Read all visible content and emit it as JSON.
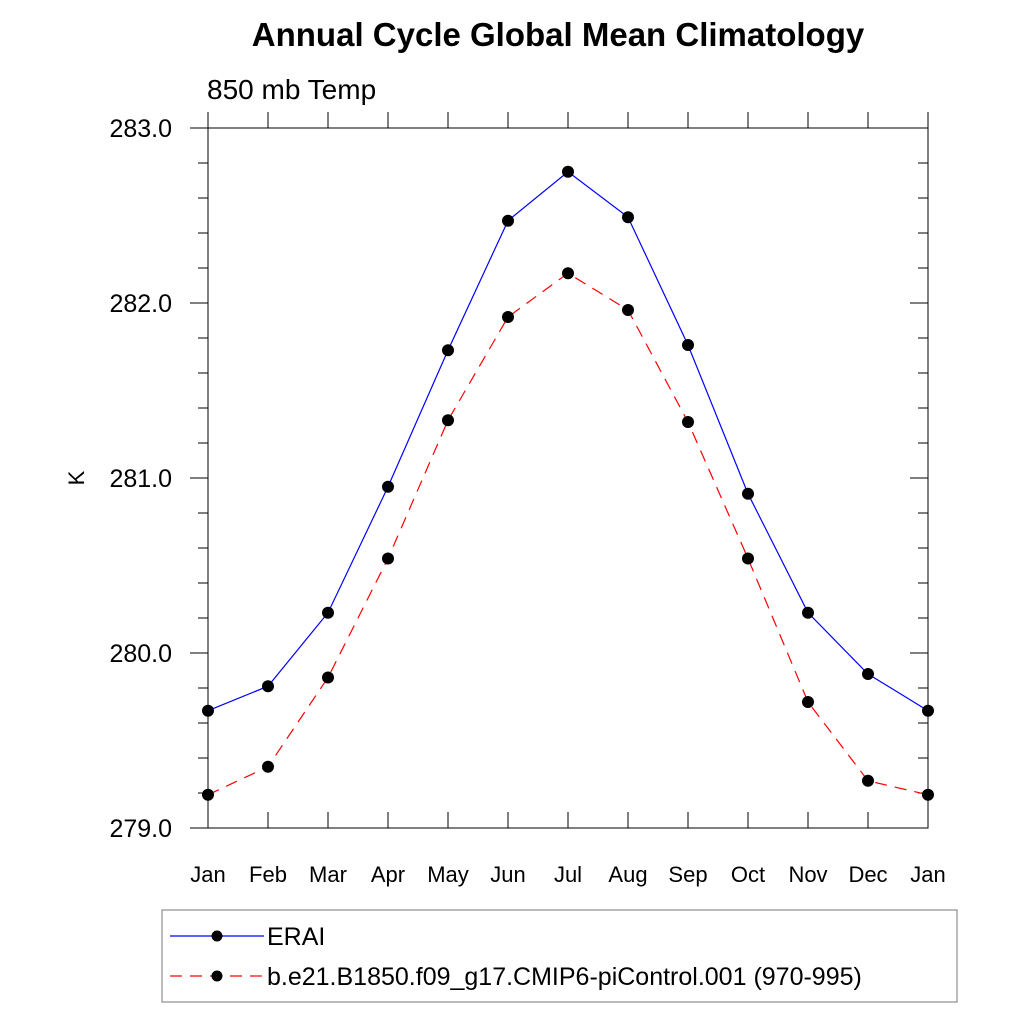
{
  "chart_data": {
    "type": "line",
    "title": "Annual Cycle Global Mean Climatology",
    "subtitle": "850 mb Temp",
    "xlabel": "",
    "ylabel": "K",
    "ylim": [
      279.0,
      283.0
    ],
    "yticks": [
      "279.0",
      "280.0",
      "281.0",
      "282.0",
      "283.0"
    ],
    "categories": [
      "Jan",
      "Feb",
      "Mar",
      "Apr",
      "May",
      "Jun",
      "Jul",
      "Aug",
      "Sep",
      "Oct",
      "Nov",
      "Dec",
      "Jan"
    ],
    "grid": false,
    "legend_position": "bottom",
    "series": [
      {
        "name": "ERAI",
        "color": "#0000ff",
        "dash": "solid",
        "values": [
          279.67,
          279.81,
          280.23,
          280.95,
          281.73,
          282.47,
          282.75,
          282.49,
          281.76,
          280.91,
          280.23,
          279.88,
          279.67
        ]
      },
      {
        "name": "b.e21.B1850.f09_g17.CMIP6-piControl.001 (970-995)",
        "color": "#ff0000",
        "dash": "dashed",
        "values": [
          279.19,
          279.35,
          279.86,
          280.54,
          281.33,
          281.92,
          282.17,
          281.96,
          281.32,
          280.54,
          279.72,
          279.27,
          279.19
        ]
      }
    ]
  }
}
